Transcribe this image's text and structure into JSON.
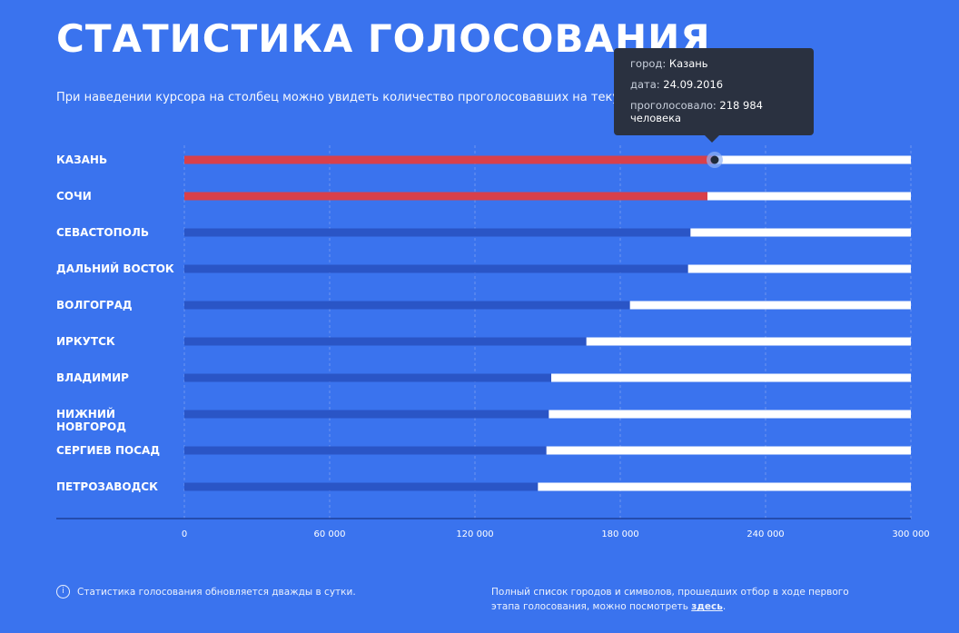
{
  "header": {
    "title": "СТАТИСТИКА ГОЛОСОВАНИЯ",
    "subtitle": "При наведении курсора на столбец можно увидеть количество проголосовавших на текущую дату."
  },
  "tooltip": {
    "city_key": "город:",
    "city_value": "Казань",
    "date_key": "дата:",
    "date_value": "24.09.2016",
    "votes_key": "проголосовало:",
    "votes_value": "218 984",
    "votes_unit": "человека"
  },
  "footer": {
    "info_icon": "i",
    "left_text": "Статистика голосования обновляется дважды в сутки.",
    "right_text": "Полный список городов и символов, прошедших отбор в ходе первого этапа голосования, можно посмотреть",
    "right_link": "здесь",
    "right_end": "."
  },
  "colors": {
    "background": "#3a73ee",
    "highlight_bar": "#d8404a",
    "bar": "#2a55c6",
    "track": "#ffffff"
  },
  "chart_data": {
    "type": "bar",
    "orientation": "horizontal",
    "categories": [
      "Казань",
      "Сочи",
      "Севастополь",
      "Дальний Восток",
      "Волгоград",
      "Иркутск",
      "Владимир",
      "Нижний Новгород",
      "Сергиев Посад",
      "Петрозаводск"
    ],
    "values": [
      218984,
      216000,
      209000,
      208000,
      184000,
      166000,
      151500,
      150500,
      149500,
      146000
    ],
    "highlighted": [
      true,
      true,
      false,
      false,
      false,
      false,
      false,
      false,
      false,
      false
    ],
    "xlim": [
      0,
      300000
    ],
    "xticks": [
      0,
      60000,
      120000,
      180000,
      240000,
      300000
    ],
    "xtick_labels": [
      "0",
      "60 000",
      "120 000",
      "180 000",
      "240 000",
      "300 000"
    ],
    "grid": true,
    "hover_point_index": 0
  }
}
